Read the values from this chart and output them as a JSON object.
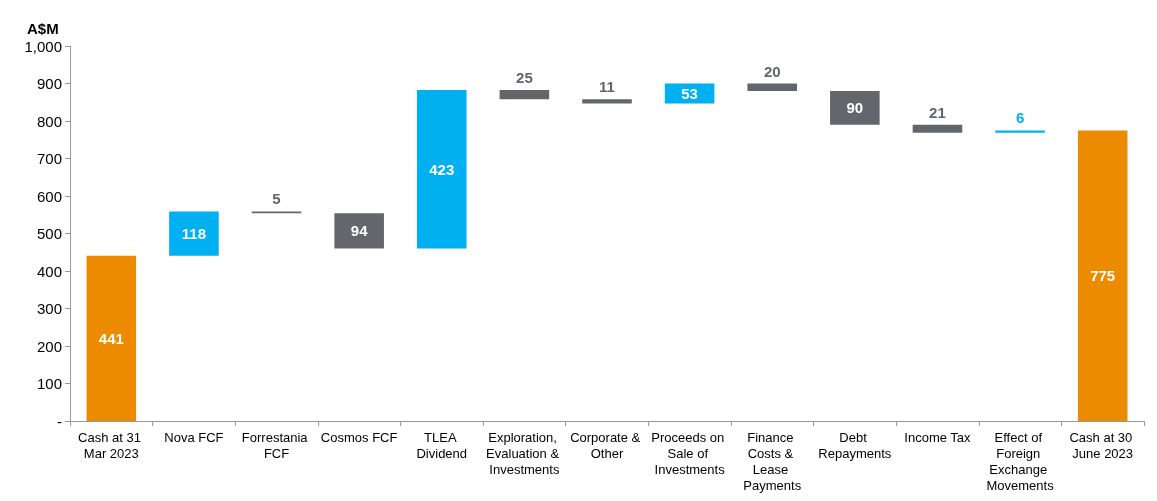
{
  "chart_data": {
    "type": "bar",
    "ylabel": "A$M",
    "categories": [
      "Cash at 31 Mar 2023",
      "Nova FCF",
      "Forrestania FCF",
      "Cosmos FCF",
      "TLEA Dividend",
      "Exploration, Evaluation & Investments",
      "Corporate & Other",
      "Proceeds on Sale of Investments",
      "Finance Costs & Lease Payments",
      "Debt Repayments",
      "Income Tax",
      "Effect of Foreign Exchange Movements",
      "Cash at 30 June 2023"
    ],
    "values": [
      441,
      118,
      5,
      94,
      423,
      25,
      11,
      53,
      20,
      90,
      21,
      6,
      775
    ],
    "base": [
      0,
      441,
      554,
      460,
      460,
      858,
      847,
      847,
      880,
      790,
      769,
      769,
      0
    ],
    "colors": [
      "#ed8b00",
      "#00b0f0",
      "#63666a",
      "#63666a",
      "#00b0f0",
      "#63666a",
      "#63666a",
      "#00b0f0",
      "#63666a",
      "#63666a",
      "#63666a",
      "#00b0f0",
      "#ed8b00"
    ],
    "data_labels": true,
    "ylim": [
      0,
      1000
    ],
    "yticks": [
      {
        "value": 0,
        "label": "-"
      },
      100,
      200,
      300,
      400,
      500,
      600,
      700,
      800,
      900,
      {
        "value": 1000,
        "label": "1,000"
      }
    ],
    "grid": false
  }
}
